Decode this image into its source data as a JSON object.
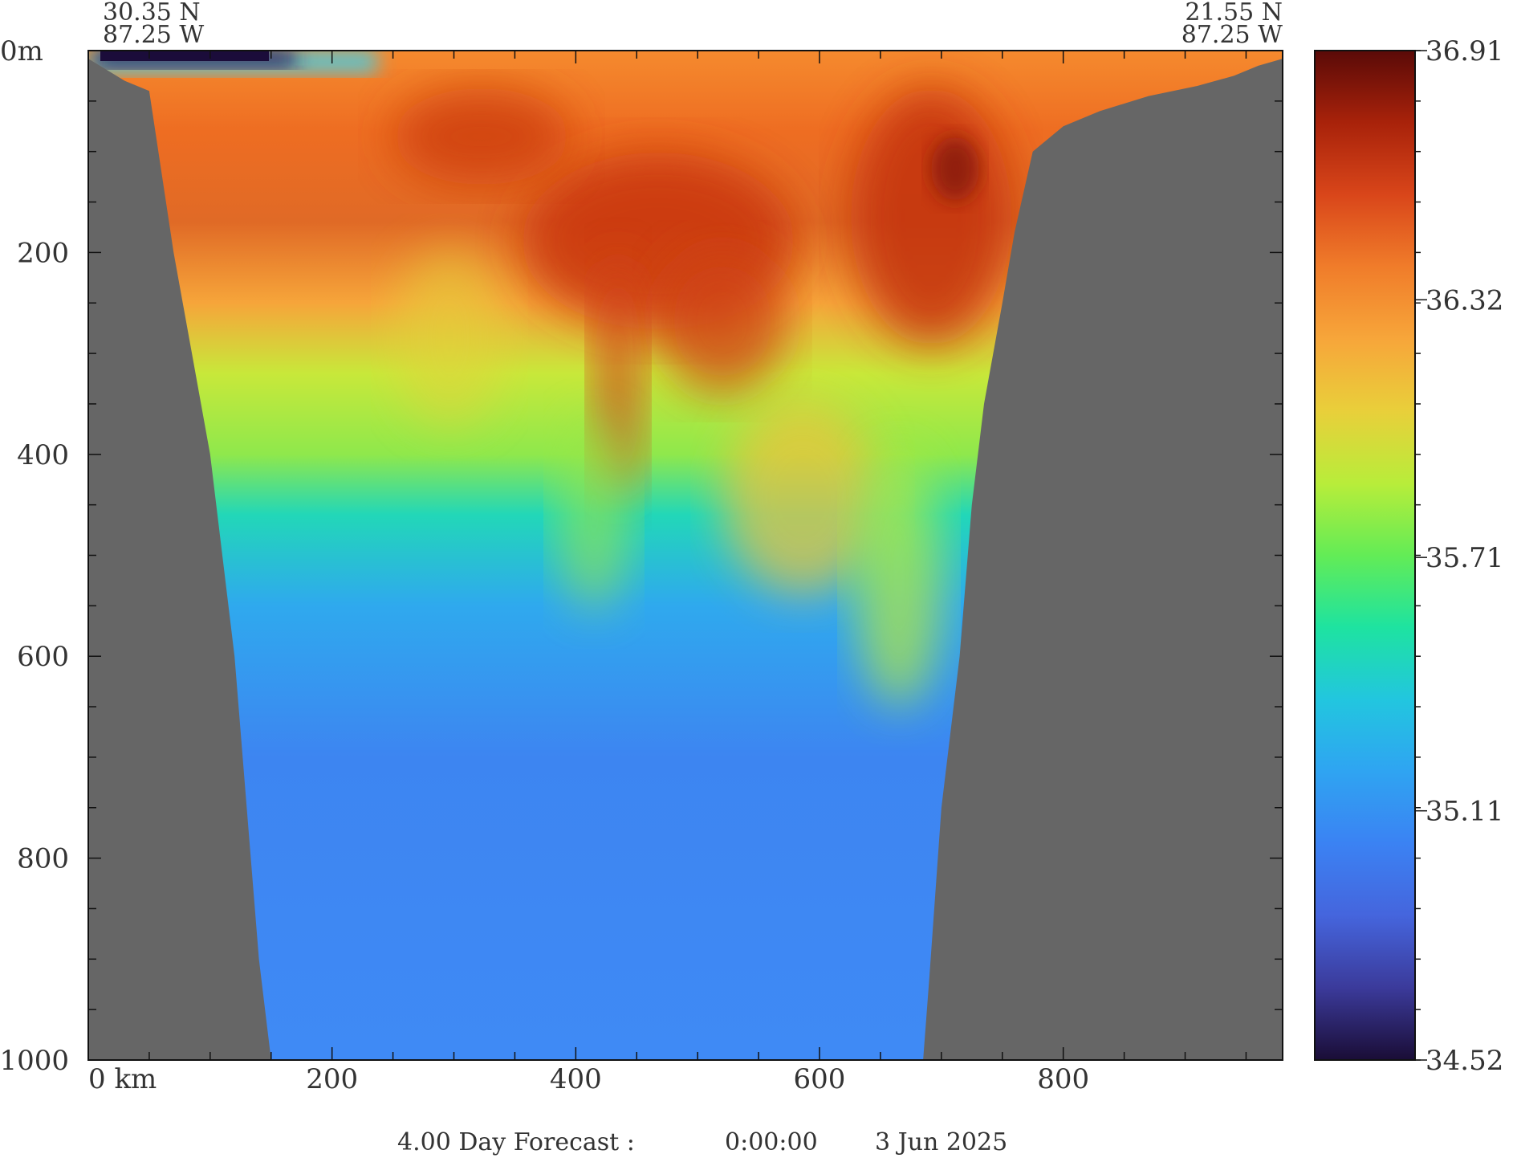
{
  "chart_data": {
    "type": "heatmap",
    "variable_range": [
      34.52,
      36.91
    ],
    "corner_labels": {
      "left": {
        "lat": "30.35 N",
        "lon": "87.25 W"
      },
      "right": {
        "lat": "21.55 N",
        "lon": "87.25 W"
      }
    },
    "x_axis": {
      "unit_label": "0 km",
      "range": [
        0,
        980
      ],
      "tick_labels": [
        "200",
        "400",
        "600",
        "800"
      ],
      "ticks": [
        200,
        400,
        600,
        800
      ]
    },
    "y_axis": {
      "range": [
        0,
        1000
      ],
      "inverted": true,
      "top_label": "0m",
      "tick_labels": [
        "200",
        "400",
        "600",
        "800",
        "1000"
      ],
      "ticks": [
        200,
        400,
        600,
        800,
        1000
      ]
    },
    "colorbar": {
      "tick_labels": [
        "36.91",
        "36.32",
        "35.71",
        "35.11",
        "34.52"
      ],
      "ticks": [
        36.91,
        36.32,
        35.71,
        35.11,
        34.52
      ],
      "colors": [
        "#5a0a08",
        "#a8220a",
        "#d9461a",
        "#f07c2a",
        "#f7a63a",
        "#e9cf3a",
        "#b8ed3a",
        "#63ec56",
        "#1ee3a0",
        "#22c6df",
        "#2fa4f2",
        "#3b82f3",
        "#4565dd",
        "#3b3a9a",
        "#1a0d36"
      ]
    },
    "bathymetry_km_m": [
      [
        0,
        8
      ],
      [
        30,
        30
      ],
      [
        50,
        40
      ],
      [
        70,
        200
      ],
      [
        85,
        300
      ],
      [
        100,
        400
      ],
      [
        110,
        500
      ],
      [
        120,
        600
      ],
      [
        130,
        750
      ],
      [
        140,
        900
      ],
      [
        150,
        1000
      ],
      [
        685,
        1000
      ],
      [
        690,
        920
      ],
      [
        700,
        750
      ],
      [
        715,
        600
      ],
      [
        725,
        450
      ],
      [
        735,
        350
      ],
      [
        750,
        250
      ],
      [
        760,
        180
      ],
      [
        775,
        100
      ],
      [
        800,
        75
      ],
      [
        830,
        60
      ],
      [
        870,
        45
      ],
      [
        910,
        35
      ],
      [
        940,
        25
      ],
      [
        960,
        15
      ],
      [
        980,
        8
      ]
    ],
    "colors": {
      "land": "#666666",
      "background": "#ffffff"
    }
  },
  "footer": {
    "forecast": "4.00 Day Forecast :",
    "time": "0:00:00",
    "date": "3 Jun 2025"
  }
}
